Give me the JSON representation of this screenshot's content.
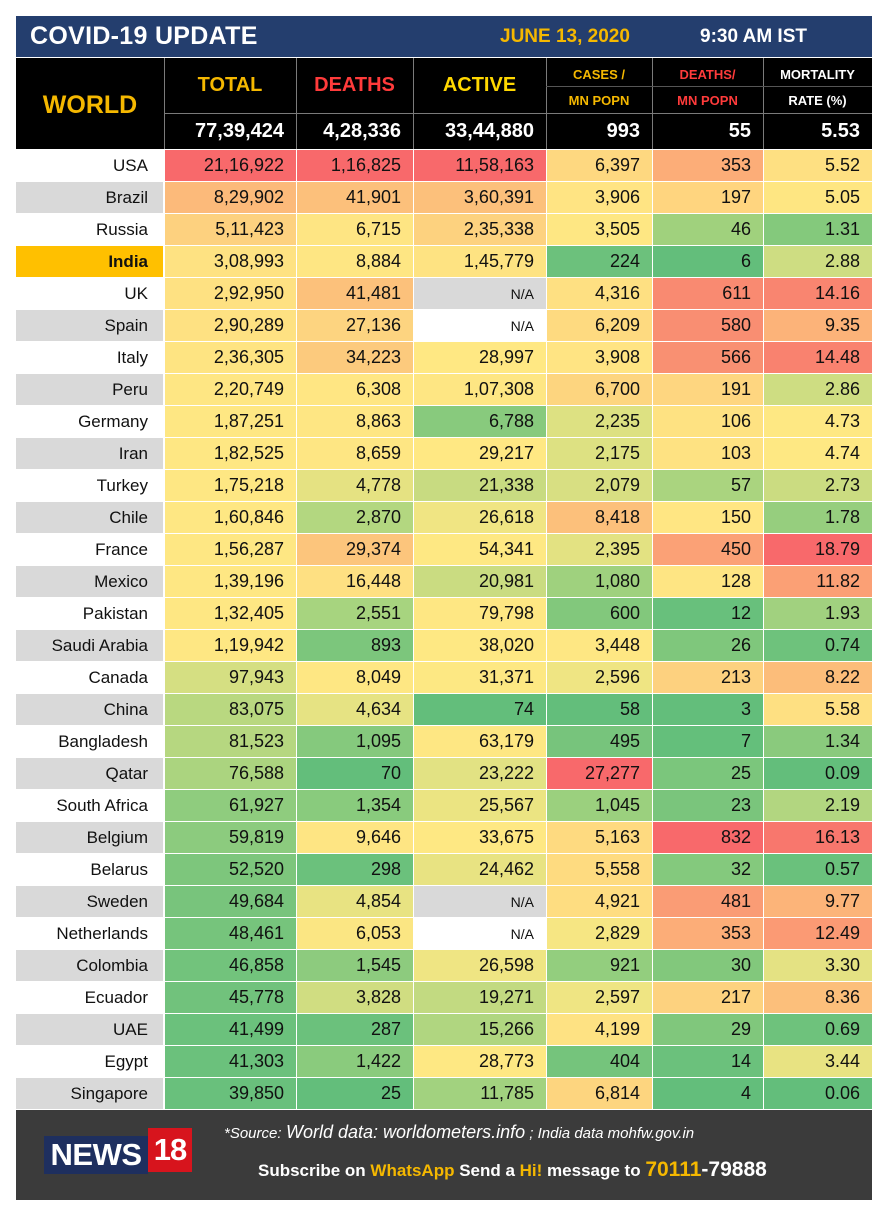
{
  "header": {
    "title": "COVID-19 UPDATE",
    "date": "JUNE 13, 2020",
    "time": "9:30 AM IST"
  },
  "columns": {
    "world": "WORLD",
    "total": "TOTAL",
    "deaths": "DEATHS",
    "active": "ACTIVE",
    "cases_per_mn_line1": "CASES /",
    "cases_per_mn_line2": "MN POPN",
    "deaths_per_mn_line1": "DEATHS/",
    "deaths_per_mn_line2": "MN POPN",
    "mortality_line1": "MORTALITY",
    "mortality_line2": "RATE (%)"
  },
  "world_totals": {
    "total": "77,39,424",
    "deaths": "4,28,336",
    "active": "33,44,880",
    "cases_per_mn": "993",
    "deaths_per_mn": "55",
    "mortality": "5.53"
  },
  "colors": {
    "header_bg": "#243e6e",
    "date_yellow": "#f5b800",
    "table_head_bg": "#000000",
    "highlight_india": "#ffc000",
    "deaths_red": "#ff3b3b",
    "active_yellow": "#ffd700"
  },
  "rows": [
    {
      "country": "USA",
      "total": "21,16,922",
      "deaths": "1,16,825",
      "active": "11,58,163",
      "cases_mn": "6,397",
      "deaths_mn": "353",
      "mortality": "5.52",
      "bg": [
        "#f8696b",
        "#f8696b",
        "#f8696b",
        "#fed880",
        "#fcad78",
        "#fee082"
      ]
    },
    {
      "country": "Brazil",
      "total": "8,29,902",
      "deaths": "41,901",
      "active": "3,60,391",
      "cases_mn": "3,906",
      "deaths_mn": "197",
      "mortality": "5.05",
      "bg": [
        "#fcba7a",
        "#fcc07b",
        "#fcc07b",
        "#ffe483",
        "#ffd57f",
        "#fee682"
      ]
    },
    {
      "country": "Russia",
      "total": "5,11,423",
      "deaths": "6,715",
      "active": "2,35,338",
      "cases_mn": "3,505",
      "deaths_mn": "46",
      "mortality": "1.31",
      "bg": [
        "#fdd17f",
        "#fee583",
        "#fdd27f",
        "#fee783",
        "#a0d17d",
        "#84c97c"
      ]
    },
    {
      "country": "India",
      "total": "3,08,993",
      "deaths": "8,884",
      "active": "1,45,779",
      "cases_mn": "224",
      "deaths_mn": "6",
      "mortality": "2.88",
      "bg": [
        "#fee282",
        "#fee683",
        "#fee382",
        "#6cc17c",
        "#63be7b",
        "#cedd82"
      ]
    },
    {
      "country": "UK",
      "total": "2,92,950",
      "deaths": "41,481",
      "active": "N/A",
      "cases_mn": "4,316",
      "deaths_mn": "611",
      "mortality": "14.16",
      "bg": [
        "#fee182",
        "#fcc17b",
        "#d9d9d9",
        "#fee082",
        "#f98a71",
        "#f98570"
      ]
    },
    {
      "country": "Spain",
      "total": "2,90,289",
      "deaths": "27,136",
      "active": "N/A",
      "cases_mn": "6,209",
      "deaths_mn": "580",
      "mortality": "9.35",
      "bg": [
        "#fee182",
        "#fdd480",
        "#ffffff",
        "#feda80",
        "#f98e72",
        "#fcb379"
      ]
    },
    {
      "country": "Italy",
      "total": "2,36,305",
      "deaths": "34,223",
      "active": "28,997",
      "cases_mn": "3,908",
      "deaths_mn": "566",
      "mortality": "14.48",
      "bg": [
        "#fee482",
        "#fcca7d",
        "#ffe883",
        "#ffe483",
        "#f99072",
        "#f9826f"
      ]
    },
    {
      "country": "Peru",
      "total": "2,20,749",
      "deaths": "6,308",
      "active": "1,07,308",
      "cases_mn": "6,700",
      "deaths_mn": "191",
      "mortality": "2.86",
      "bg": [
        "#fee683",
        "#ffe683",
        "#fee683",
        "#fdd57f",
        "#fed680",
        "#cedd82"
      ]
    },
    {
      "country": "Germany",
      "total": "1,87,251",
      "deaths": "8,863",
      "active": "6,788",
      "cases_mn": "2,235",
      "deaths_mn": "106",
      "mortality": "4.73",
      "bg": [
        "#fee783",
        "#fee683",
        "#88ca7d",
        "#dde182",
        "#fee282",
        "#fee883"
      ]
    },
    {
      "country": "Iran",
      "total": "1,82,525",
      "deaths": "8,659",
      "active": "29,217",
      "cases_mn": "2,175",
      "deaths_mn": "103",
      "mortality": "4.74",
      "bg": [
        "#fee783",
        "#fee683",
        "#ffe883",
        "#dde182",
        "#fee282",
        "#fee883"
      ]
    },
    {
      "country": "Turkey",
      "total": "1,75,218",
      "deaths": "4,778",
      "active": "21,338",
      "cases_mn": "2,079",
      "deaths_mn": "57",
      "mortality": "2.73",
      "bg": [
        "#fee783",
        "#e5e282",
        "#c8db81",
        "#d8df82",
        "#aad47f",
        "#cbdc81"
      ]
    },
    {
      "country": "Chile",
      "total": "1,60,846",
      "deaths": "2,870",
      "active": "26,618",
      "cases_mn": "8,418",
      "deaths_mn": "150",
      "mortality": "1.78",
      "bg": [
        "#fee783",
        "#b3d780",
        "#f0e583",
        "#fcc07b",
        "#ffe683",
        "#96ce7e"
      ]
    },
    {
      "country": "France",
      "total": "1,56,287",
      "deaths": "29,374",
      "active": "54,341",
      "cases_mn": "2,395",
      "deaths_mn": "450",
      "mortality": "18.79",
      "bg": [
        "#fee783",
        "#fcc57c",
        "#fee883",
        "#e3e282",
        "#fba176",
        "#f8696b"
      ]
    },
    {
      "country": "Mexico",
      "total": "1,39,196",
      "deaths": "16,448",
      "active": "20,981",
      "cases_mn": "1,080",
      "deaths_mn": "128",
      "mortality": "11.82",
      "bg": [
        "#fee783",
        "#fee082",
        "#cadc81",
        "#9fd17e",
        "#fee583",
        "#fba075"
      ]
    },
    {
      "country": "Pakistan",
      "total": "1,32,405",
      "deaths": "2,551",
      "active": "79,798",
      "cases_mn": "600",
      "deaths_mn": "12",
      "mortality": "1.93",
      "bg": [
        "#fee783",
        "#a7d47f",
        "#fee783",
        "#82c87c",
        "#68c07c",
        "#a1d17f"
      ]
    },
    {
      "country": "Saudi Arabia",
      "total": "1,19,942",
      "deaths": "893",
      "active": "38,020",
      "cases_mn": "3,448",
      "deaths_mn": "26",
      "mortality": "0.74",
      "bg": [
        "#fee783",
        "#7cc67c",
        "#fee883",
        "#fee783",
        "#7fc77c",
        "#6ec27c"
      ]
    },
    {
      "country": "Canada",
      "total": "97,943",
      "deaths": "8,049",
      "active": "31,371",
      "cases_mn": "2,596",
      "deaths_mn": "213",
      "mortality": "8.22",
      "bg": [
        "#d5df82",
        "#fee783",
        "#fde883",
        "#efe583",
        "#fdd17f",
        "#fcbd7a"
      ]
    },
    {
      "country": "China",
      "total": "83,075",
      "deaths": "4,634",
      "active": "74",
      "cases_mn": "58",
      "deaths_mn": "3",
      "mortality": "5.58",
      "bg": [
        "#b9d880",
        "#e6e383",
        "#63be7b",
        "#63be7b",
        "#63be7b",
        "#fee082"
      ]
    },
    {
      "country": "Bangladesh",
      "total": "81,523",
      "deaths": "1,095",
      "active": "63,179",
      "cases_mn": "495",
      "deaths_mn": "7",
      "mortality": "1.34",
      "bg": [
        "#b6d780",
        "#85c97d",
        "#fee783",
        "#77c47c",
        "#64bf7b",
        "#8aca7d"
      ]
    },
    {
      "country": "Qatar",
      "total": "76,588",
      "deaths": "70",
      "active": "23,222",
      "cases_mn": "27,277",
      "deaths_mn": "25",
      "mortality": "0.09",
      "bg": [
        "#abd47f",
        "#63be7b",
        "#e2e283",
        "#f8696b",
        "#7bc67c",
        "#63be7b"
      ]
    },
    {
      "country": "South Africa",
      "total": "61,927",
      "deaths": "1,354",
      "active": "25,567",
      "cases_mn": "1,045",
      "deaths_mn": "23",
      "mortality": "2.19",
      "bg": [
        "#8fcc7e",
        "#89cb7d",
        "#ebe482",
        "#9bd07e",
        "#7ac57c",
        "#b2d680"
      ]
    },
    {
      "country": "Belgium",
      "total": "59,819",
      "deaths": "9,646",
      "active": "33,675",
      "cases_mn": "5,163",
      "deaths_mn": "832",
      "mortality": "16.13",
      "bg": [
        "#8ccb7e",
        "#fee583",
        "#fee883",
        "#feda80",
        "#f8696b",
        "#f8776d"
      ]
    },
    {
      "country": "Belarus",
      "total": "52,520",
      "deaths": "298",
      "active": "24,462",
      "cases_mn": "5,558",
      "deaths_mn": "32",
      "mortality": "0.57",
      "bg": [
        "#7dc67c",
        "#6bc17c",
        "#e8e382",
        "#fedb80",
        "#84c97d",
        "#6ac17c"
      ]
    },
    {
      "country": "Sweden",
      "total": "49,684",
      "deaths": "4,854",
      "active": "N/A",
      "cases_mn": "4,921",
      "deaths_mn": "481",
      "mortality": "9.77",
      "bg": [
        "#78c47c",
        "#e8e382",
        "#d9d9d9",
        "#fedd81",
        "#fa9c75",
        "#fcb479"
      ]
    },
    {
      "country": "Netherlands",
      "total": "48,461",
      "deaths": "6,053",
      "active": "N/A",
      "cases_mn": "2,829",
      "deaths_mn": "353",
      "mortality": "12.49",
      "bg": [
        "#76c47c",
        "#fbe683",
        "#ffffff",
        "#f6e683",
        "#fcad78",
        "#fb9a74"
      ]
    },
    {
      "country": "Colombia",
      "total": "46,858",
      "deaths": "1,545",
      "active": "26,598",
      "cases_mn": "921",
      "deaths_mn": "30",
      "mortality": "3.30",
      "bg": [
        "#72c37c",
        "#8dcb7e",
        "#efe583",
        "#93ce7e",
        "#82c87c",
        "#e4e283"
      ]
    },
    {
      "country": "Ecuador",
      "total": "45,778",
      "deaths": "3,828",
      "active": "19,271",
      "cases_mn": "2,597",
      "deaths_mn": "217",
      "mortality": "8.36",
      "bg": [
        "#71c27c",
        "#d0dd81",
        "#c2da81",
        "#efe583",
        "#fdd27f",
        "#fcbf7b"
      ]
    },
    {
      "country": "UAE",
      "total": "41,499",
      "deaths": "287",
      "active": "15,266",
      "cases_mn": "4,199",
      "deaths_mn": "29",
      "mortality": "0.69",
      "bg": [
        "#6bc17c",
        "#6bc17c",
        "#b0d680",
        "#fee283",
        "#80c77c",
        "#6ec27c"
      ]
    },
    {
      "country": "Egypt",
      "total": "41,303",
      "deaths": "1,422",
      "active": "28,773",
      "cases_mn": "404",
      "deaths_mn": "14",
      "mortality": "3.44",
      "bg": [
        "#6bc17c",
        "#8acb7d",
        "#fee883",
        "#75c47c",
        "#6bc17c",
        "#e8e382"
      ]
    },
    {
      "country": "Singapore",
      "total": "39,850",
      "deaths": "25",
      "active": "11,785",
      "cases_mn": "6,814",
      "deaths_mn": "4",
      "mortality": "0.06",
      "bg": [
        "#69c07c",
        "#63be7b",
        "#a2d27f",
        "#fdd57f",
        "#63be7b",
        "#63be7b"
      ]
    }
  ],
  "row_label_bgs": {
    "odd": "#ffffff",
    "even": "#d9d9d9",
    "india": "#ffc000"
  },
  "footer": {
    "source_prefix": "*Source:",
    "source_world": "World data: worldometers.info",
    "source_sep": " ; ",
    "source_india": "India data mohfw.gov.in",
    "logo_news": "NEWS",
    "logo_18": "18",
    "sub_1": "Subscribe on ",
    "sub_whatsapp": "WhatsApp",
    "sub_2": " Send a ",
    "sub_hi": "Hi!",
    "sub_3": " message to ",
    "sub_num1": "70111",
    "sub_dash": "-",
    "sub_num2": "79888"
  }
}
